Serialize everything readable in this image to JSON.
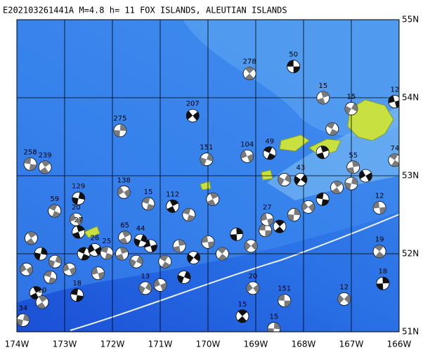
{
  "chart_data": {
    "type": "map",
    "title": "E202103261441A M=4.8 h= 11 FOX ISLANDS, ALEUTIAN ISLANDS",
    "xlim": [
      -174,
      -166
    ],
    "ylim": [
      51,
      55
    ],
    "xticks": [
      {
        "value": -174,
        "label": "174W"
      },
      {
        "value": -173,
        "label": "173W"
      },
      {
        "value": -172,
        "label": "172W"
      },
      {
        "value": -171,
        "label": "171W"
      },
      {
        "value": -170,
        "label": "170W"
      },
      {
        "value": -169,
        "label": "169W"
      },
      {
        "value": -168,
        "label": "168W"
      },
      {
        "value": -167,
        "label": "167W"
      },
      {
        "value": -166,
        "label": "166W"
      }
    ],
    "yticks": [
      {
        "value": 51,
        "label": "51N"
      },
      {
        "value": 52,
        "label": "52N"
      },
      {
        "value": 53,
        "label": "53N"
      },
      {
        "value": 54,
        "label": "54N"
      },
      {
        "value": 55,
        "label": "55N"
      }
    ],
    "grid": true,
    "events": [
      {
        "lon": -168.21,
        "lat": 54.4,
        "label": 50
      },
      {
        "lon": -169.13,
        "lat": 54.31,
        "label": 278
      },
      {
        "lon": -171.84,
        "lat": 53.58,
        "label": 275
      },
      {
        "lon": -170.32,
        "lat": 53.77,
        "label": 207
      },
      {
        "lon": -173.72,
        "lat": 53.15,
        "label": 258
      },
      {
        "lon": -173.41,
        "lat": 53.11,
        "label": 239
      },
      {
        "lon": -172.71,
        "lat": 52.71,
        "label": 129
      },
      {
        "lon": -171.76,
        "lat": 52.79,
        "label": 138
      },
      {
        "lon": -171.25,
        "lat": 52.64,
        "label": 15
      },
      {
        "lon": -170.74,
        "lat": 52.61,
        "label": 112
      },
      {
        "lon": -170.03,
        "lat": 53.21,
        "label": 151
      },
      {
        "lon": -169.18,
        "lat": 53.25,
        "label": 104
      },
      {
        "lon": -168.71,
        "lat": 53.29,
        "label": 49
      },
      {
        "lon": -167.59,
        "lat": 54.0,
        "label": 15
      },
      {
        "lon": -167.0,
        "lat": 53.86,
        "label": 15
      },
      {
        "lon": -166.09,
        "lat": 53.95,
        "label": 12
      },
      {
        "lon": -166.09,
        "lat": 53.2,
        "label": 74
      },
      {
        "lon": -166.96,
        "lat": 53.11,
        "label": 55
      },
      {
        "lon": -168.06,
        "lat": 52.95,
        "label": 43
      },
      {
        "lon": -166.41,
        "lat": 52.59,
        "label": 12
      },
      {
        "lon": -166.41,
        "lat": 52.03,
        "label": 19
      },
      {
        "lon": -166.34,
        "lat": 51.62,
        "label": 18
      },
      {
        "lon": -167.15,
        "lat": 51.42,
        "label": 12
      },
      {
        "lon": -168.4,
        "lat": 51.4,
        "label": 151
      },
      {
        "lon": -169.28,
        "lat": 51.2,
        "label": 15
      },
      {
        "lon": -168.62,
        "lat": 51.04,
        "label": 15
      },
      {
        "lon": -169.06,
        "lat": 51.56,
        "label": 20
      },
      {
        "lon": -172.74,
        "lat": 51.47,
        "label": 18
      },
      {
        "lon": -173.47,
        "lat": 51.38,
        "label": 10
      },
      {
        "lon": -173.87,
        "lat": 51.15,
        "label": 34
      },
      {
        "lon": -172.37,
        "lat": 52.05,
        "label": 26
      },
      {
        "lon": -172.12,
        "lat": 52.01,
        "label": 25
      },
      {
        "lon": -171.74,
        "lat": 52.21,
        "label": 65
      },
      {
        "lon": -171.41,
        "lat": 52.17,
        "label": 44
      },
      {
        "lon": -172.76,
        "lat": 52.44,
        "label": 20
      },
      {
        "lon": -173.21,
        "lat": 52.55,
        "label": 59
      },
      {
        "lon": -172.71,
        "lat": 52.28,
        "label": 27
      },
      {
        "lon": -171.31,
        "lat": 51.56,
        "label": 13
      },
      {
        "lon": -168.76,
        "lat": 52.44,
        "label": 27
      }
    ],
    "unlabeled_events": [
      [
        -173.7,
        52.2
      ],
      [
        -173.5,
        52.0
      ],
      [
        -173.8,
        51.8
      ],
      [
        -173.3,
        51.7
      ],
      [
        -173.6,
        51.5
      ],
      [
        -173.2,
        51.9
      ],
      [
        -172.9,
        51.8
      ],
      [
        -172.6,
        52.0
      ],
      [
        -171.8,
        52.0
      ],
      [
        -171.5,
        51.9
      ],
      [
        -171.2,
        52.1
      ],
      [
        -170.9,
        51.9
      ],
      [
        -170.6,
        52.1
      ],
      [
        -170.3,
        51.95
      ],
      [
        -170.0,
        52.15
      ],
      [
        -169.7,
        52.0
      ],
      [
        -169.4,
        52.25
      ],
      [
        -169.1,
        52.1
      ],
      [
        -168.8,
        52.3
      ],
      [
        -168.5,
        52.35
      ],
      [
        -168.2,
        52.5
      ],
      [
        -167.9,
        52.6
      ],
      [
        -167.6,
        52.7
      ],
      [
        -167.3,
        52.85
      ],
      [
        -167.0,
        52.9
      ],
      [
        -166.7,
        53.0
      ],
      [
        -170.4,
        52.5
      ],
      [
        -169.9,
        52.7
      ],
      [
        -170.5,
        51.7
      ],
      [
        -171.0,
        51.6
      ],
      [
        -167.4,
        53.6
      ],
      [
        -167.6,
        53.3
      ],
      [
        -168.4,
        52.95
      ],
      [
        -172.3,
        51.75
      ]
    ]
  }
}
